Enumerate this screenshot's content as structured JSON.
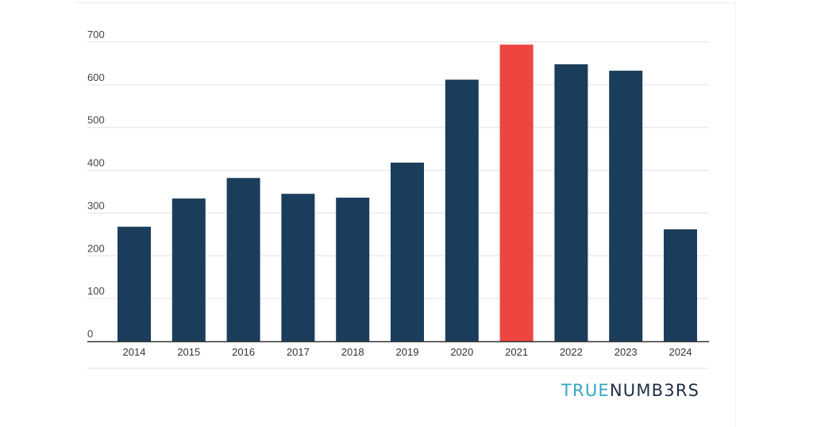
{
  "chart_data": {
    "type": "bar",
    "categories": [
      "2014",
      "2015",
      "2016",
      "2017",
      "2018",
      "2019",
      "2020",
      "2021",
      "2022",
      "2023",
      "2024"
    ],
    "values": [
      268,
      334,
      382,
      345,
      336,
      418,
      612,
      694,
      648,
      633,
      262
    ],
    "highlight_index": 7,
    "ylim": [
      0,
      700
    ],
    "yticks": [
      0,
      100,
      200,
      300,
      400,
      500,
      600,
      700
    ],
    "grid": true,
    "bar_color": "#1a3d5c",
    "highlight_color": "#ee4541",
    "grid_color": "#e2e2e2",
    "axis_color": "#333333"
  },
  "logo": {
    "part1": "TRUE",
    "part2": "NUMB3RS",
    "color1": "#33a6c4",
    "color2": "#1f2f44"
  }
}
